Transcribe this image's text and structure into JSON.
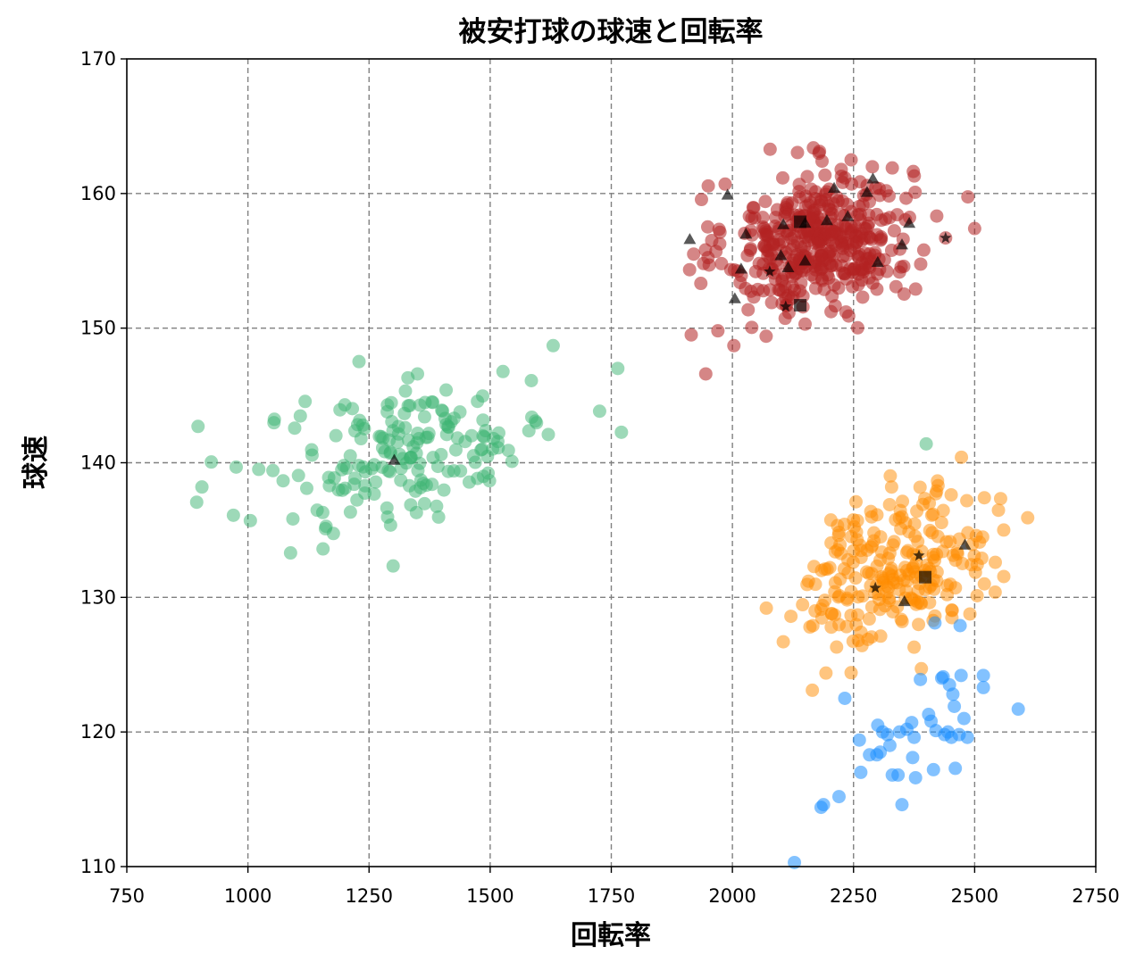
{
  "chart_data": {
    "type": "scatter",
    "title": "被安打球の球速と回転率",
    "xlabel": "回転率",
    "ylabel": "球速",
    "xlim": [
      750,
      2750
    ],
    "ylim": [
      110,
      170
    ],
    "xticks": [
      750,
      1000,
      1250,
      1500,
      1750,
      2000,
      2250,
      2500,
      2750
    ],
    "yticks": [
      110,
      120,
      130,
      140,
      150,
      160,
      170
    ],
    "grid": true,
    "legend": "none",
    "series": [
      {
        "color": "#b22222",
        "opacity": 0.55,
        "marker": "circle",
        "generated": true,
        "n": 420,
        "center": [
          2180,
          156.5
        ],
        "spread": [
          95,
          2.6
        ],
        "correlation": 0.15,
        "points": [
          [
            1915,
            149.5
          ],
          [
            1945,
            146.6
          ],
          [
            1985,
            160.7
          ],
          [
            2003,
            148.7
          ],
          [
            2500,
            157.4
          ],
          [
            2245,
            162.5
          ],
          [
            2185,
            162.4
          ],
          [
            2330,
            161.9
          ],
          [
            2440,
            156.7
          ],
          [
            2395,
            155.8
          ],
          [
            2150,
            150.3
          ],
          [
            2240,
            150.9
          ],
          [
            1970,
            149.8
          ],
          [
            1920,
            155.5
          ]
        ]
      },
      {
        "color": "#3cb371",
        "opacity": 0.5,
        "marker": "circle",
        "generated": true,
        "n": 170,
        "center": [
          1330,
          140.8
        ],
        "spread": [
          150,
          2.8
        ],
        "correlation": 0.45,
        "points": [
          [
            897,
            142.7
          ],
          [
            905,
            138.2
          ],
          [
            970,
            136.1
          ],
          [
            1005,
            135.7
          ],
          [
            1088,
            133.3
          ],
          [
            1155,
            133.6
          ],
          [
            1160,
            135.1
          ],
          [
            1630,
            148.7
          ],
          [
            1620,
            142.1
          ],
          [
            1585,
            146.1
          ],
          [
            1350,
            146.6
          ],
          [
            1200,
            144.3
          ],
          [
            1545,
            140.1
          ],
          [
            2400,
            141.4
          ]
        ]
      },
      {
        "color": "#ff8c00",
        "opacity": 0.5,
        "marker": "circle",
        "generated": true,
        "n": 230,
        "center": [
          2340,
          132.4
        ],
        "spread": [
          95,
          2.8
        ],
        "correlation": 0.35,
        "points": [
          [
            2070,
            129.2
          ],
          [
            2105,
            126.7
          ],
          [
            2165,
            123.1
          ],
          [
            2245,
            124.4
          ],
          [
            2390,
            124.7
          ],
          [
            2375,
            126.3
          ],
          [
            2520,
            137.4
          ],
          [
            2560,
            135.0
          ],
          [
            2520,
            131.0
          ],
          [
            2510,
            134.1
          ],
          [
            2255,
            137.1
          ],
          [
            2420,
            137.7
          ],
          [
            2160,
            127.8
          ],
          [
            2260,
            126.8
          ]
        ]
      },
      {
        "color": "#1e90ff",
        "opacity": 0.55,
        "marker": "circle",
        "generated": false,
        "points": [
          [
            2128,
            110.3
          ],
          [
            2183,
            114.4
          ],
          [
            2188,
            114.6
          ],
          [
            2220,
            115.2
          ],
          [
            2232,
            122.5
          ],
          [
            2262,
            119.4
          ],
          [
            2265,
            117.0
          ],
          [
            2283,
            118.3
          ],
          [
            2300,
            120.5
          ],
          [
            2298,
            118.3
          ],
          [
            2305,
            118.5
          ],
          [
            2310,
            120.0
          ],
          [
            2320,
            119.8
          ],
          [
            2325,
            119.0
          ],
          [
            2330,
            116.8
          ],
          [
            2342,
            116.8
          ],
          [
            2350,
            114.6
          ],
          [
            2345,
            120.0
          ],
          [
            2360,
            120.2
          ],
          [
            2370,
            120.7
          ],
          [
            2372,
            118.1
          ],
          [
            2375,
            119.6
          ],
          [
            2378,
            116.6
          ],
          [
            2388,
            123.9
          ],
          [
            2405,
            121.3
          ],
          [
            2410,
            120.8
          ],
          [
            2415,
            117.2
          ],
          [
            2418,
            128.1
          ],
          [
            2420,
            120.1
          ],
          [
            2432,
            124.0
          ],
          [
            2435,
            124.1
          ],
          [
            2438,
            119.8
          ],
          [
            2445,
            120.0
          ],
          [
            2448,
            123.5
          ],
          [
            2452,
            119.6
          ],
          [
            2455,
            122.8
          ],
          [
            2458,
            121.9
          ],
          [
            2460,
            117.3
          ],
          [
            2468,
            119.8
          ],
          [
            2470,
            127.9
          ],
          [
            2472,
            124.2
          ],
          [
            2478,
            121.0
          ],
          [
            2485,
            119.6
          ],
          [
            2518,
            124.2
          ],
          [
            2518,
            123.3
          ],
          [
            2590,
            121.7
          ]
        ]
      }
    ],
    "highlights": [
      {
        "marker": "triangle",
        "color": "#000000",
        "points": [
          [
            1912,
            156.6
          ],
          [
            1990,
            159.9
          ],
          [
            2005,
            152.2
          ],
          [
            2018,
            154.4
          ],
          [
            2028,
            157.0
          ],
          [
            2100,
            155.4
          ],
          [
            2105,
            157.7
          ],
          [
            2115,
            154.5
          ],
          [
            2150,
            155.0
          ],
          [
            2150,
            157.8
          ],
          [
            2195,
            158.0
          ],
          [
            2210,
            160.4
          ],
          [
            2238,
            158.3
          ],
          [
            2278,
            160.1
          ],
          [
            2290,
            161.1
          ],
          [
            2300,
            154.9
          ],
          [
            2350,
            156.2
          ],
          [
            2365,
            157.8
          ],
          [
            1302,
            140.2
          ],
          [
            2355,
            129.7
          ],
          [
            2480,
            133.9
          ]
        ]
      },
      {
        "marker": "square",
        "color": "#000000",
        "points": [
          [
            2140,
            157.9
          ],
          [
            2140,
            151.7
          ],
          [
            2398,
            131.5
          ]
        ]
      },
      {
        "marker": "star",
        "color": "#000000",
        "points": [
          [
            2077,
            154.2
          ],
          [
            2110,
            151.6
          ],
          [
            2440,
            156.7
          ],
          [
            2295,
            130.7
          ],
          [
            2385,
            133.1
          ]
        ]
      }
    ]
  }
}
